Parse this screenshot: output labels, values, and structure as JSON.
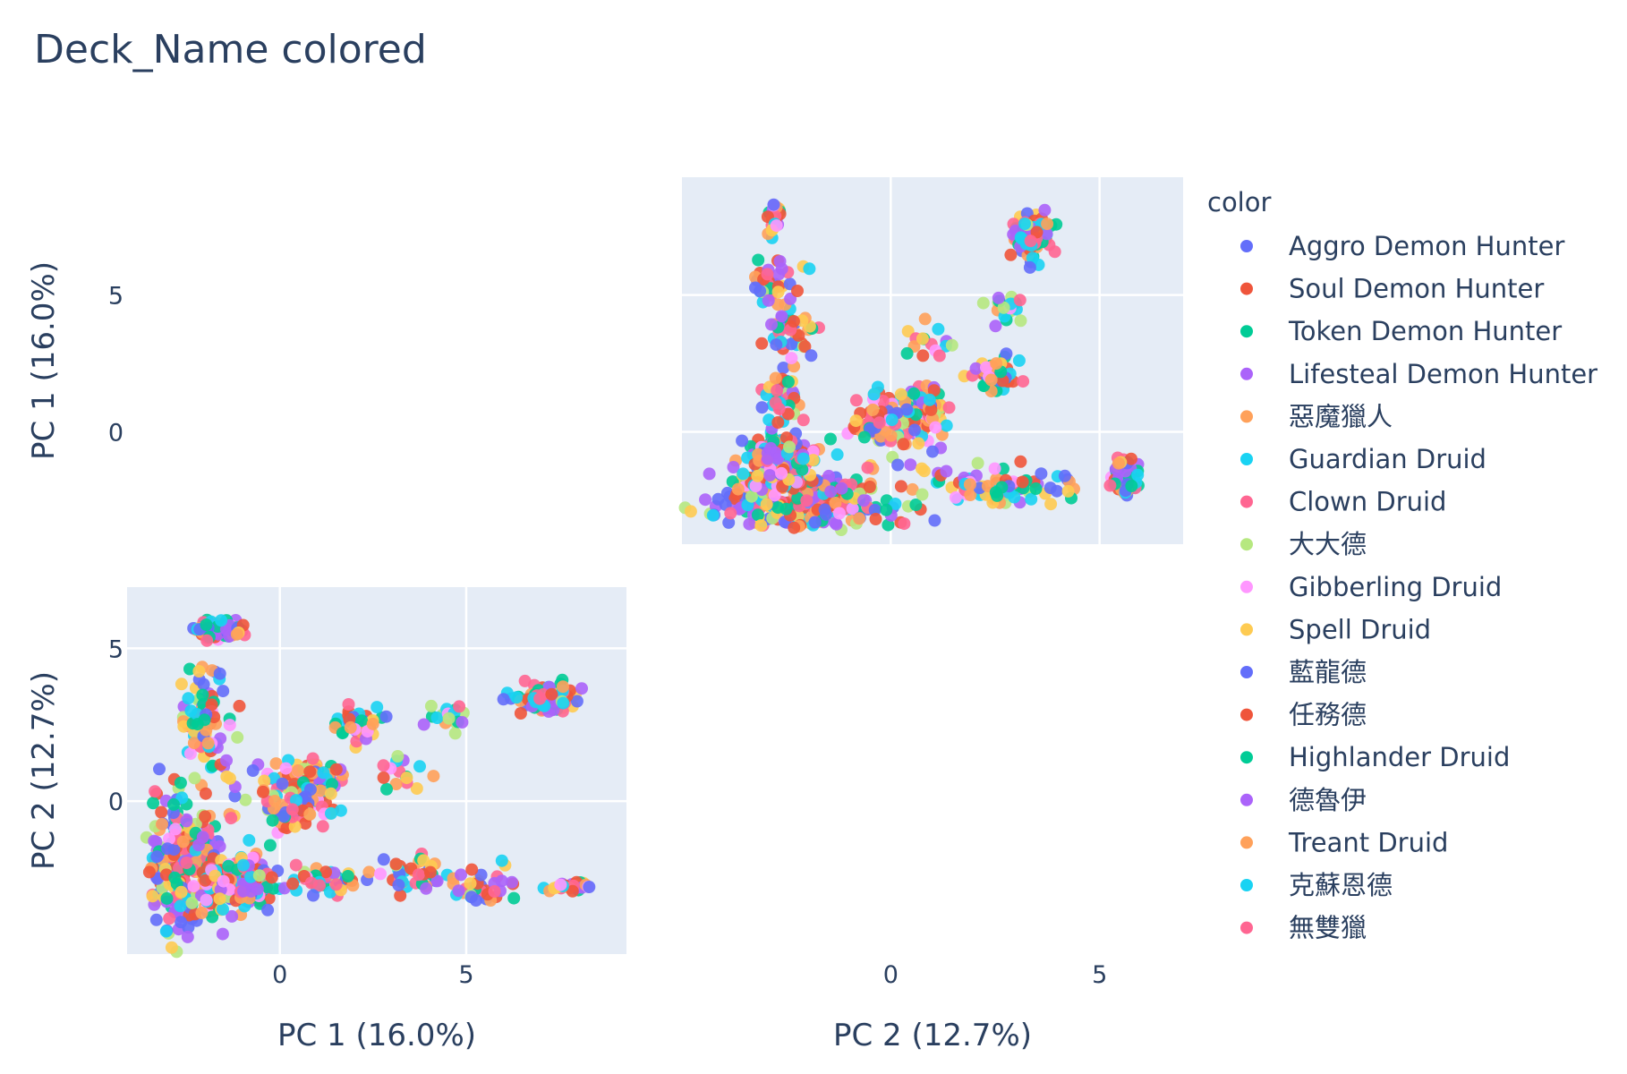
{
  "chart_data": {
    "type": "scatter",
    "subtype": "scatter-matrix",
    "title": "Deck_Name colored",
    "dimensions": [
      "PC 1 (16.0%)",
      "PC 2 (12.7%)"
    ],
    "ticks": {
      "PC 1 (16.0%)": [
        0,
        5
      ],
      "PC 2 (12.7%)": [
        0,
        5
      ]
    },
    "ranges": {
      "PC 1 (16.0%)": [
        -4.1,
        9.3
      ],
      "PC 2 (12.7%)": [
        -5.0,
        7.0
      ]
    },
    "grid": true,
    "legend": {
      "title": "color",
      "position": "right"
    },
    "series": [
      {
        "name": "Aggro Demon Hunter",
        "color": "#636efa"
      },
      {
        "name": "Soul Demon Hunter",
        "color": "#ef553b"
      },
      {
        "name": "Token Demon Hunter",
        "color": "#00cc96"
      },
      {
        "name": "Lifesteal Demon Hunter",
        "color": "#ab63fa"
      },
      {
        "name": "惡魔獵人",
        "color": "#ffa15a"
      },
      {
        "name": "Guardian Druid",
        "color": "#19d3f3"
      },
      {
        "name": "Clown Druid",
        "color": "#ff6692"
      },
      {
        "name": "大大德",
        "color": "#b6e880"
      },
      {
        "name": "Gibberling Druid",
        "color": "#ff97ff"
      },
      {
        "name": "Spell Druid",
        "color": "#fecb52"
      },
      {
        "name": "藍龍德",
        "color": "#636efa"
      },
      {
        "name": "任務德",
        "color": "#ef553b"
      },
      {
        "name": "Highlander Druid",
        "color": "#00cc96"
      },
      {
        "name": "德魯伊",
        "color": "#ab63fa"
      },
      {
        "name": "Treant Druid",
        "color": "#ffa15a"
      },
      {
        "name": "克蘇恩德",
        "color": "#19d3f3"
      },
      {
        "name": "無雙獵",
        "color": "#ff6692"
      }
    ],
    "clusters": [
      {
        "pc1": -2.4,
        "pc2": -2.0,
        "sx": 0.55,
        "sy": 1.1,
        "n": 320
      },
      {
        "pc1": -1.0,
        "pc2": -2.6,
        "sx": 0.5,
        "sy": 0.4,
        "n": 150
      },
      {
        "pc1": -1.6,
        "pc2": 5.6,
        "sx": 0.35,
        "sy": 0.15,
        "n": 90
      },
      {
        "pc1": -2.0,
        "pc2": 2.5,
        "sx": 0.35,
        "sy": 0.9,
        "n": 90
      },
      {
        "pc1": 0.6,
        "pc2": 0.8,
        "sx": 0.5,
        "sy": 0.25,
        "n": 90
      },
      {
        "pc1": 0.4,
        "pc2": -0.2,
        "sx": 0.45,
        "sy": 0.35,
        "n": 70
      },
      {
        "pc1": 2.2,
        "pc2": 2.5,
        "sx": 0.35,
        "sy": 0.3,
        "n": 50
      },
      {
        "pc1": 7.2,
        "pc2": 3.4,
        "sx": 0.4,
        "sy": 0.25,
        "n": 90
      },
      {
        "pc1": 1.2,
        "pc2": -2.6,
        "sx": 0.45,
        "sy": 0.2,
        "n": 50
      },
      {
        "pc1": 3.5,
        "pc2": -2.4,
        "sx": 0.5,
        "sy": 0.3,
        "n": 40
      },
      {
        "pc1": 5.5,
        "pc2": -2.7,
        "sx": 0.4,
        "sy": 0.3,
        "n": 35
      },
      {
        "pc1": 7.8,
        "pc2": -2.8,
        "sx": 0.3,
        "sy": 0.1,
        "n": 30
      },
      {
        "pc1": 4.6,
        "pc2": 2.8,
        "sx": 0.25,
        "sy": 0.25,
        "n": 20
      },
      {
        "pc1": 3.3,
        "pc2": 0.8,
        "sx": 0.3,
        "sy": 0.3,
        "n": 15
      }
    ]
  }
}
